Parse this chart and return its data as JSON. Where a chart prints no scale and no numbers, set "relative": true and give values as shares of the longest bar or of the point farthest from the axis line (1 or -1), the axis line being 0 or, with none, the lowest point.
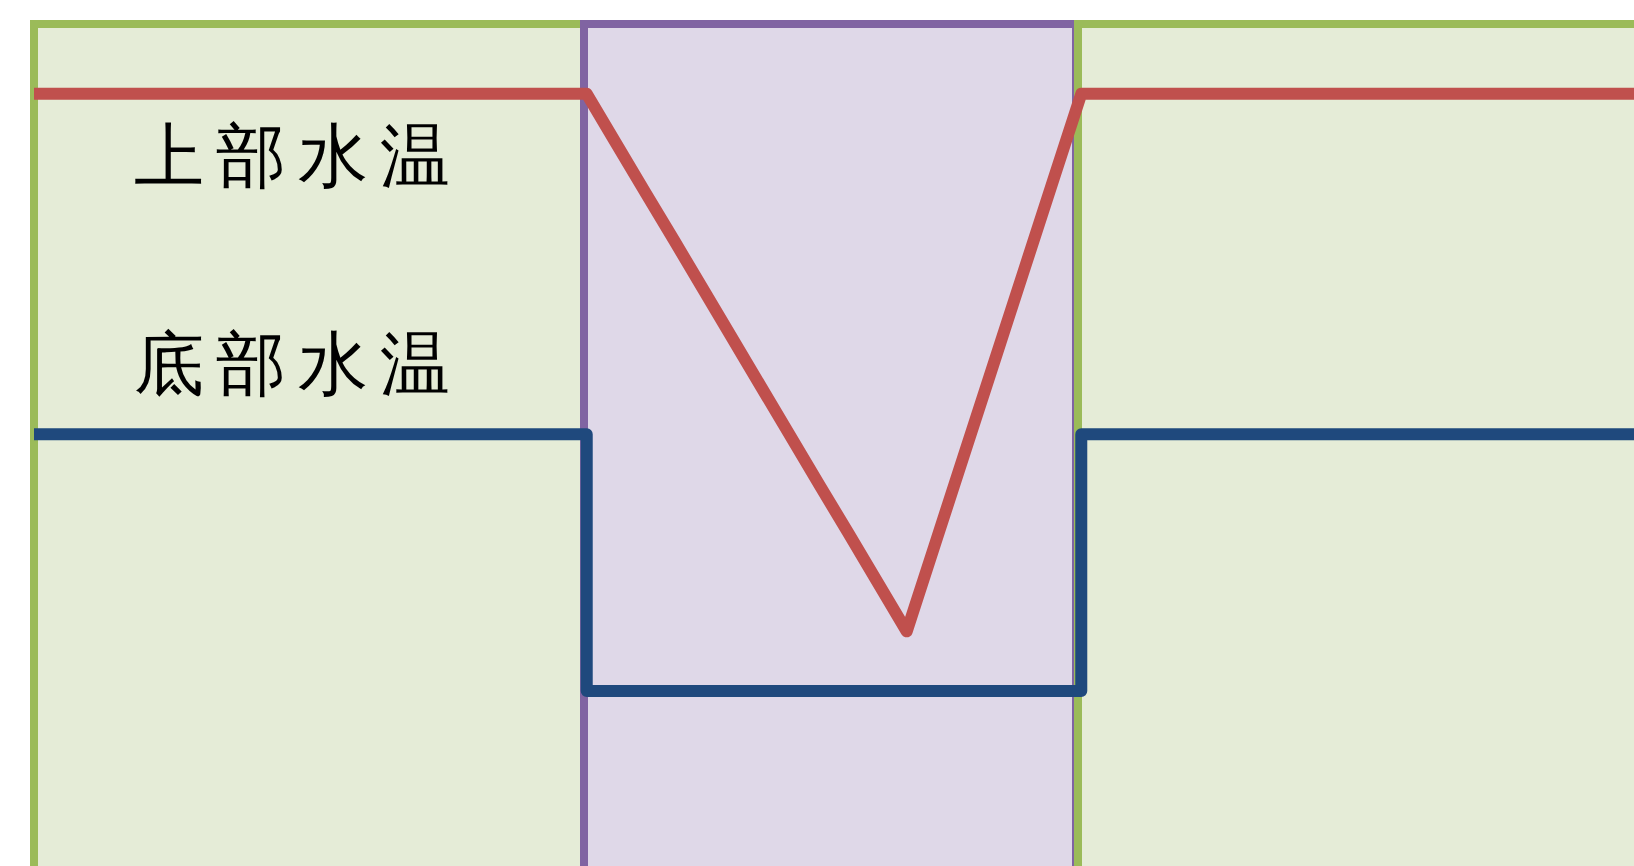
{
  "chart_data": {
    "type": "line",
    "relative": true,
    "categories": [
      null,
      null,
      null,
      null,
      null,
      null,
      null,
      null,
      null,
      null,
      null,
      null,
      null,
      null,
      null,
      null,
      null,
      null,
      null,
      null,
      null,
      null,
      null,
      null,
      null,
      null,
      null,
      null,
      null,
      null,
      null,
      null,
      null,
      null,
      null,
      null,
      null,
      null,
      null,
      null,
      null,
      null,
      null,
      null,
      null,
      null,
      null,
      null,
      null,
      null,
      null,
      null,
      null,
      null,
      null,
      null
    ],
    "series": [
      {
        "name": "上部水温",
        "color": "#c0504d",
        "values": [
          1,
          1,
          1,
          1,
          1,
          1,
          1,
          1,
          1,
          1,
          1,
          1,
          1,
          1,
          1,
          1,
          1,
          1,
          1,
          1,
          0.918,
          0.836,
          0.755,
          0.673,
          0.591,
          0.509,
          0.427,
          0.345,
          0.264,
          0.182,
          0.1,
          0.25,
          0.4,
          0.55,
          0.7,
          0.85,
          1,
          1,
          1,
          1,
          1,
          1,
          1,
          1,
          1,
          1,
          1,
          1,
          1,
          1,
          1,
          1,
          1,
          1,
          1,
          1
        ]
      },
      {
        "name": "底部水温",
        "type": "step",
        "color": "#1f497d",
        "values": [
          0.43,
          0.43,
          0.43,
          0.43,
          0.43,
          0.43,
          0.43,
          0.43,
          0.43,
          0.43,
          0.43,
          0.43,
          0.43,
          0.43,
          0.43,
          0.43,
          0.43,
          0.43,
          0.43,
          0,
          0,
          0,
          0,
          0,
          0,
          0,
          0,
          0,
          0,
          0,
          0,
          0,
          0,
          0,
          0,
          0,
          0.43,
          0.43,
          0.43,
          0.43,
          0.43,
          0.43,
          0.43,
          0.43,
          0.43,
          0.43,
          0.43,
          0.43,
          0.43,
          0.43,
          0.43,
          0.43,
          0.43,
          0.43,
          0.43,
          0.43
        ]
      }
    ],
    "legend": false,
    "grid": false,
    "marker": "none",
    "line_style": "solid"
  }
}
